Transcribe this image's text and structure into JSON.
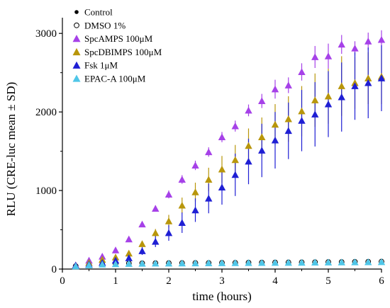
{
  "chart_data": {
    "type": "scatter",
    "title": "",
    "xlabel": "time (hours)",
    "ylabel": "RLU (CRE-luc mean ± SD)",
    "xlim": [
      0,
      6
    ],
    "ylim": [
      0,
      3200
    ],
    "x_ticks": [
      "0",
      "1",
      "2",
      "3",
      "4",
      "5",
      "6"
    ],
    "y_ticks": [
      "0",
      "1000",
      "2000",
      "3000"
    ],
    "x_tick_values": [
      0,
      1,
      2,
      3,
      4,
      5,
      6
    ],
    "y_tick_values": [
      0,
      1000,
      2000,
      3000
    ],
    "grid": false,
    "legend_position": "top-left",
    "x": [
      0.25,
      0.5,
      0.75,
      1.0,
      1.25,
      1.5,
      1.75,
      2.0,
      2.25,
      2.5,
      2.75,
      3.0,
      3.25,
      3.5,
      3.75,
      4.0,
      4.25,
      4.5,
      4.75,
      5.0,
      5.25,
      5.5,
      5.75,
      6.0
    ],
    "series": [
      {
        "name": "Control",
        "marker": "dot",
        "color": "#000000",
        "values": [
          40,
          55,
          65,
          70,
          75,
          75,
          78,
          78,
          80,
          80,
          80,
          82,
          82,
          84,
          85,
          86,
          87,
          88,
          90,
          92,
          92,
          94,
          95,
          98
        ],
        "errors": [
          5,
          8,
          10,
          12,
          12,
          12,
          12,
          12,
          12,
          12,
          12,
          12,
          12,
          12,
          12,
          12,
          12,
          12,
          14,
          14,
          14,
          14,
          14,
          15
        ]
      },
      {
        "name": "DMSO 1%",
        "marker": "circle",
        "color": "#000000",
        "values": [
          38,
          52,
          62,
          68,
          72,
          74,
          75,
          76,
          77,
          78,
          78,
          80,
          80,
          82,
          83,
          84,
          85,
          86,
          88,
          90,
          90,
          92,
          93,
          95
        ],
        "errors": [
          5,
          8,
          10,
          12,
          12,
          12,
          12,
          12,
          12,
          12,
          12,
          12,
          12,
          12,
          12,
          12,
          12,
          12,
          14,
          14,
          14,
          14,
          14,
          15
        ]
      },
      {
        "name": "SpcAMPS 100μM",
        "marker": "triangle",
        "color": "#a641e8",
        "values": [
          50,
          110,
          160,
          240,
          380,
          570,
          770,
          950,
          1140,
          1320,
          1490,
          1680,
          1820,
          2020,
          2140,
          2290,
          2340,
          2510,
          2700,
          2710,
          2860,
          2810,
          2900,
          2920
        ],
        "errors": [
          10,
          15,
          20,
          25,
          30,
          35,
          40,
          50,
          55,
          60,
          60,
          65,
          70,
          75,
          90,
          120,
          100,
          110,
          140,
          160,
          120,
          90,
          110,
          120
        ]
      },
      {
        "name": "SpcDBIMPS 100μM",
        "marker": "triangle",
        "color": "#b8960b",
        "values": [
          45,
          80,
          120,
          150,
          200,
          320,
          460,
          610,
          810,
          980,
          1140,
          1270,
          1390,
          1570,
          1680,
          1840,
          1910,
          2010,
          2150,
          2200,
          2330,
          2370,
          2430,
          2450
        ],
        "errors": [
          10,
          15,
          20,
          25,
          30,
          35,
          50,
          80,
          100,
          120,
          150,
          170,
          190,
          220,
          250,
          260,
          290,
          320,
          340,
          350,
          380,
          330,
          330,
          350
        ]
      },
      {
        "name": "Fsk 1μM",
        "marker": "triangle",
        "color": "#1f1fd4",
        "values": [
          45,
          60,
          80,
          110,
          140,
          230,
          350,
          460,
          590,
          750,
          900,
          1040,
          1200,
          1370,
          1510,
          1640,
          1760,
          1890,
          1970,
          2100,
          2190,
          2330,
          2370,
          2430
        ],
        "errors": [
          10,
          15,
          20,
          25,
          30,
          50,
          70,
          100,
          130,
          150,
          190,
          220,
          270,
          290,
          340,
          360,
          360,
          390,
          410,
          420,
          440,
          430,
          450,
          420
        ]
      },
      {
        "name": "EPAC-A 100μM",
        "marker": "triangle",
        "color": "#4fc6e8",
        "values": [
          36,
          50,
          60,
          65,
          68,
          70,
          72,
          73,
          74,
          75,
          76,
          77,
          78,
          79,
          80,
          81,
          82,
          83,
          85,
          86,
          87,
          88,
          89,
          90
        ],
        "errors": [
          5,
          8,
          10,
          10,
          10,
          10,
          10,
          10,
          10,
          10,
          10,
          10,
          10,
          10,
          10,
          10,
          10,
          10,
          12,
          12,
          12,
          12,
          12,
          12
        ]
      }
    ]
  }
}
